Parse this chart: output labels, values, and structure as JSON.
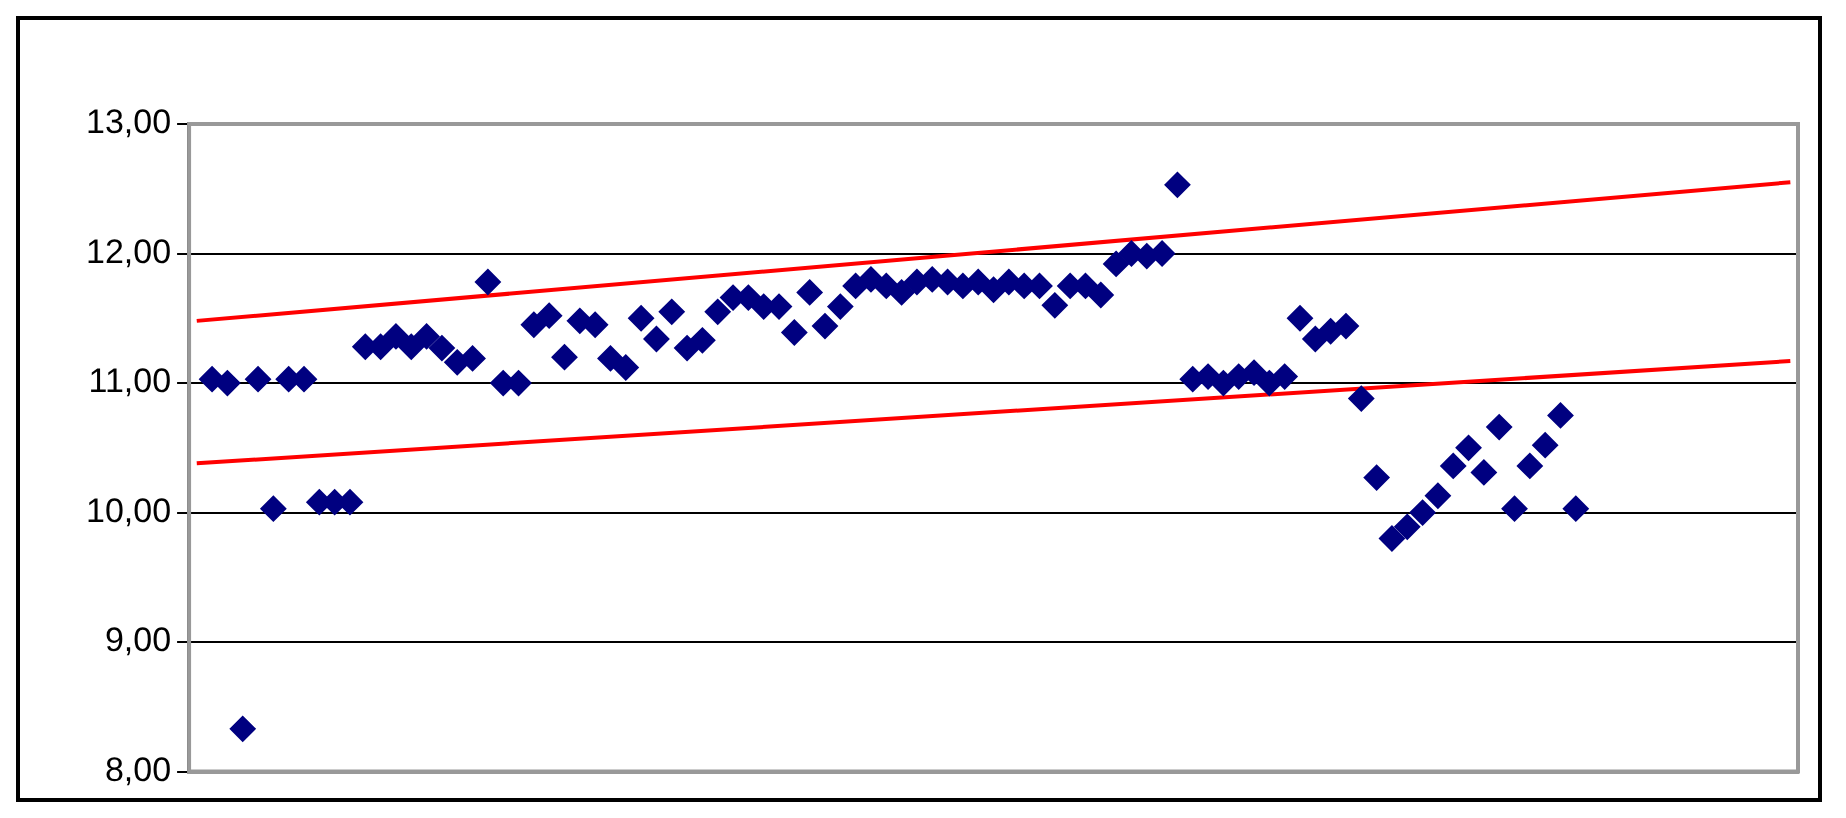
{
  "chart_data": {
    "type": "scatter",
    "categories": [
      null,
      null,
      null,
      null,
      null,
      null,
      null,
      null,
      null,
      null,
      null,
      null,
      null,
      null,
      null,
      null,
      null,
      null,
      null,
      null,
      null,
      null,
      null,
      null,
      null,
      null,
      null,
      null,
      null,
      null,
      null,
      null,
      null,
      null,
      null,
      null,
      null,
      null,
      null,
      null,
      null,
      null,
      null,
      null,
      null,
      null,
      null,
      null,
      null,
      null,
      null,
      null,
      null,
      null,
      null,
      null,
      null,
      null,
      null,
      null,
      null,
      null,
      null,
      null,
      null,
      null,
      null,
      null,
      null,
      null,
      null,
      null,
      null,
      null,
      null,
      null,
      null,
      null,
      null,
      null,
      null,
      null,
      null,
      null,
      null,
      null,
      null,
      null,
      null,
      null,
      null,
      null,
      null,
      null,
      null,
      null,
      null,
      null,
      null,
      null,
      null,
      null,
      null,
      null,
      null
    ],
    "series": [
      {
        "color": "#000080",
        "marker": "diamond",
        "values": [
          null,
          11.03,
          11.0,
          8.33,
          11.03,
          10.03,
          11.03,
          11.03,
          10.08,
          10.08,
          10.08,
          11.28,
          11.28,
          11.36,
          11.28,
          11.36,
          11.27,
          11.16,
          11.19,
          11.78,
          11.0,
          11.0,
          11.45,
          11.52,
          11.2,
          11.48,
          11.45,
          11.19,
          11.12,
          11.5,
          11.34,
          11.55,
          11.27,
          11.33,
          11.55,
          11.66,
          11.66,
          11.59,
          11.59,
          11.39,
          11.7,
          11.44,
          11.59,
          11.75,
          11.8,
          11.75,
          11.7,
          11.78,
          11.8,
          11.78,
          11.75,
          11.78,
          11.72,
          11.78,
          11.75,
          11.75,
          11.6,
          11.75,
          11.75,
          11.68,
          11.92,
          12.0,
          11.98,
          12.0,
          12.53,
          11.03,
          11.05,
          11.0,
          11.05,
          11.08,
          11.0,
          11.05,
          11.5,
          11.34,
          11.4,
          11.44,
          10.88,
          10.27,
          9.8,
          9.89,
          10.0,
          10.13,
          10.36,
          10.5,
          10.31,
          10.66,
          10.03,
          10.36,
          10.52,
          10.75,
          10.03,
          null,
          null,
          null,
          null,
          null,
          null,
          null,
          null,
          null,
          null,
          null,
          null,
          null,
          null
        ]
      },
      {
        "type": "line",
        "color": "#ff0000",
        "marker": "none",
        "values": [
          11.48,
          null,
          null,
          null,
          null,
          null,
          null,
          null,
          null,
          null,
          null,
          null,
          null,
          null,
          null,
          null,
          null,
          null,
          null,
          null,
          null,
          null,
          null,
          null,
          null,
          null,
          null,
          null,
          null,
          null,
          null,
          null,
          null,
          null,
          null,
          null,
          null,
          null,
          null,
          null,
          null,
          null,
          null,
          null,
          null,
          null,
          null,
          null,
          null,
          null,
          null,
          null,
          null,
          null,
          null,
          null,
          null,
          null,
          null,
          null,
          null,
          null,
          null,
          null,
          null,
          null,
          null,
          null,
          null,
          null,
          null,
          null,
          null,
          null,
          null,
          null,
          null,
          null,
          null,
          null,
          null,
          null,
          null,
          null,
          null,
          null,
          null,
          null,
          null,
          null,
          null,
          null,
          null,
          null,
          null,
          null,
          null,
          null,
          null,
          null,
          null,
          null,
          null,
          null,
          12.55
        ]
      },
      {
        "type": "line",
        "color": "#ff0000",
        "marker": "none",
        "values": [
          10.38,
          null,
          null,
          null,
          null,
          null,
          null,
          null,
          null,
          null,
          null,
          null,
          null,
          null,
          null,
          null,
          null,
          null,
          null,
          null,
          null,
          null,
          null,
          null,
          null,
          null,
          null,
          null,
          null,
          null,
          null,
          null,
          null,
          null,
          null,
          null,
          null,
          null,
          null,
          null,
          null,
          null,
          null,
          null,
          null,
          null,
          null,
          null,
          null,
          null,
          null,
          null,
          null,
          null,
          null,
          null,
          null,
          null,
          null,
          null,
          null,
          null,
          null,
          null,
          null,
          null,
          null,
          null,
          null,
          null,
          null,
          null,
          null,
          null,
          null,
          null,
          null,
          null,
          null,
          null,
          null,
          null,
          null,
          null,
          null,
          null,
          null,
          null,
          null,
          null,
          null,
          null,
          null,
          null,
          null,
          null,
          null,
          null,
          null,
          null,
          null,
          null,
          null,
          null,
          11.17
        ]
      }
    ],
    "ylim": [
      8,
      13
    ],
    "yticks": [
      {
        "value": 8,
        "label": "8,00"
      },
      {
        "value": 9,
        "label": "9,00"
      },
      {
        "value": 10,
        "label": "10,00"
      },
      {
        "value": 11,
        "label": "11,00"
      },
      {
        "value": 12,
        "label": "12,00"
      },
      {
        "value": 13,
        "label": "13,00"
      }
    ],
    "grid": "y",
    "legend": false,
    "line_style": "solid",
    "tick_labels": "y"
  }
}
